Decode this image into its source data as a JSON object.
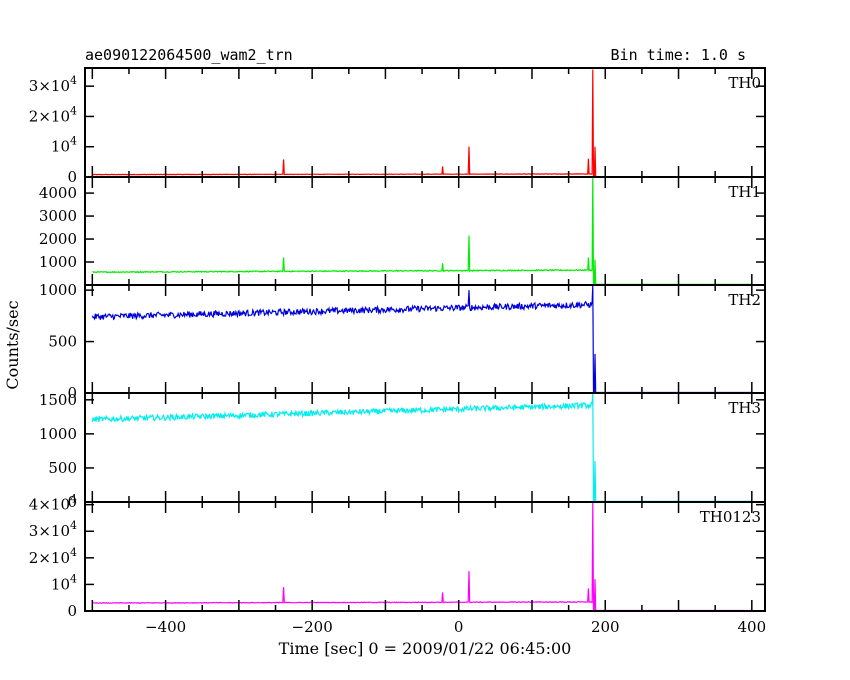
{
  "header": {
    "title": "ae090122064500_wam2_trn",
    "bin_time": "Bin time: 1.0 s"
  },
  "chart_data": {
    "type": "line",
    "xlabel": "Time [sec] 0 = 2009/01/22 06:45:00",
    "ylabel": "Counts/sec",
    "xlim": [
      -510,
      418
    ],
    "x_ticks": [
      -400,
      -200,
      0,
      200,
      400
    ],
    "x_tick_labels": [
      "−400",
      "−200",
      "0",
      "200",
      "400"
    ],
    "panels": [
      {
        "name": "TH0",
        "color": "#ff0000",
        "ylim": [
          0,
          36000
        ],
        "y_ticks": [
          0,
          10000,
          20000,
          30000
        ],
        "y_tick_labels": [
          {
            "text": "0"
          },
          {
            "text": "10",
            "sup": "4"
          },
          {
            "text": "2×10",
            "sup": "4"
          },
          {
            "text": "3×10",
            "sup": "4"
          }
        ],
        "base_start": 800,
        "base_end": 1000,
        "noise": 60,
        "spikes": [
          [
            -239,
            5800
          ],
          [
            -22,
            3500
          ],
          [
            14,
            10000
          ],
          [
            177,
            6000
          ],
          [
            183,
            35500
          ],
          [
            186,
            10000
          ]
        ],
        "after": 100
      },
      {
        "name": "TH1",
        "color": "#00ee00",
        "ylim": [
          0,
          4700
        ],
        "y_ticks": [
          1000,
          2000,
          3000,
          4000
        ],
        "y_tick_labels": [
          {
            "text": "1000"
          },
          {
            "text": "2000"
          },
          {
            "text": "3000"
          },
          {
            "text": "4000"
          }
        ],
        "base_start": 560,
        "base_end": 650,
        "noise": 22,
        "spikes": [
          [
            -239,
            1200
          ],
          [
            -22,
            950
          ],
          [
            14,
            2150
          ],
          [
            177,
            1200
          ],
          [
            183,
            4700
          ],
          [
            186,
            1100
          ]
        ],
        "after": 30
      },
      {
        "name": "TH2",
        "color": "#0000dd",
        "ylim": [
          0,
          1050
        ],
        "y_ticks": [
          0,
          500,
          1000
        ],
        "y_tick_labels": [
          {
            "text": "0"
          },
          {
            "text": "500"
          },
          {
            "text": "1000"
          }
        ],
        "base_start": 740,
        "base_end": 860,
        "noise": 30,
        "spikes": [
          [
            14,
            1000
          ],
          [
            183,
            1050
          ],
          [
            186,
            380
          ]
        ],
        "after": 5
      },
      {
        "name": "TH3",
        "color": "#00eeee",
        "ylim": [
          0,
          1600
        ],
        "y_ticks": [
          0,
          500,
          1000,
          1500
        ],
        "y_tick_labels": [
          {
            "text": "0"
          },
          {
            "text": "500"
          },
          {
            "text": "1000"
          },
          {
            "text": "1500"
          }
        ],
        "base_start": 1210,
        "base_end": 1420,
        "noise": 40,
        "spikes": [
          [
            183,
            1600
          ],
          [
            186,
            600
          ]
        ],
        "after": 10
      },
      {
        "name": "TH0123",
        "color": "#ff00ff",
        "ylim": [
          0,
          41000
        ],
        "y_ticks": [
          0,
          10000,
          20000,
          30000,
          40000
        ],
        "y_tick_labels": [
          {
            "text": "0"
          },
          {
            "text": "10",
            "sup": "4"
          },
          {
            "text": "2×10",
            "sup": "4"
          },
          {
            "text": "3×10",
            "sup": "4"
          },
          {
            "text": "4×10",
            "sup": "4"
          }
        ],
        "base_start": 3000,
        "base_end": 3400,
        "noise": 120,
        "spikes": [
          [
            -239,
            9000
          ],
          [
            -22,
            7000
          ],
          [
            14,
            15000
          ],
          [
            177,
            8500
          ],
          [
            183,
            41000
          ],
          [
            186,
            12000
          ]
        ],
        "after": 200
      }
    ]
  }
}
